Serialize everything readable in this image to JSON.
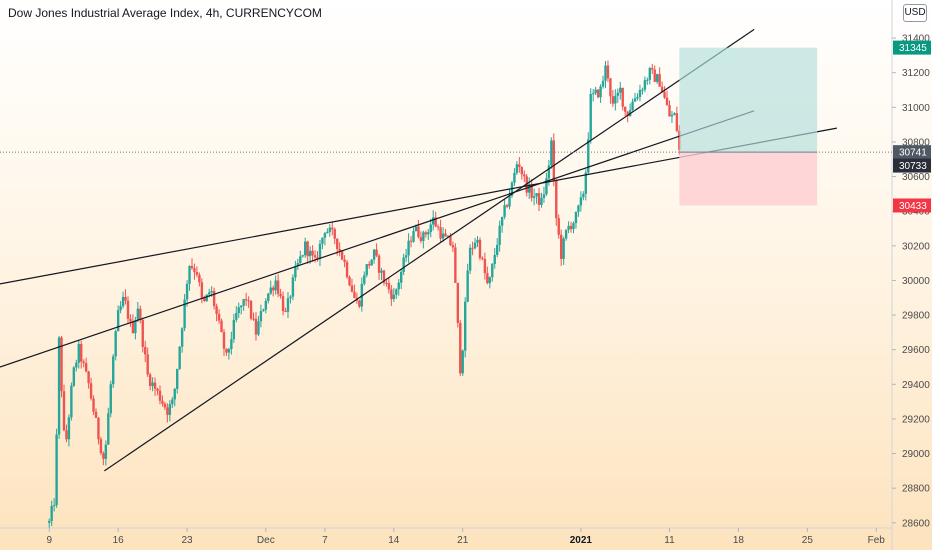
{
  "header": {
    "title": "Dow Jones Industrial Average Index, 4h, CURRENCYCOM",
    "currency": "USD"
  },
  "chart_data": {
    "type": "candlestick",
    "symbol": "Dow Jones Industrial Average Index",
    "interval": "4h",
    "exchange": "CURRENCYCOM",
    "y_ticks": [
      31400,
      31200,
      31000,
      30800,
      30600,
      30400,
      30200,
      30000,
      29800,
      29600,
      29400,
      29200,
      29000,
      28800,
      28600
    ],
    "ylim": [
      28570,
      31620
    ],
    "x_ticks": [
      {
        "label": "9",
        "bold": false
      },
      {
        "label": "16",
        "bold": false
      },
      {
        "label": "23",
        "bold": false
      },
      {
        "label": "Dec",
        "bold": false
      },
      {
        "label": "7",
        "bold": false
      },
      {
        "label": "14",
        "bold": false
      },
      {
        "label": "21",
        "bold": false
      },
      {
        "label": "2021",
        "bold": true
      },
      {
        "label": "11",
        "bold": false
      },
      {
        "label": "18",
        "bold": false
      },
      {
        "label": "25",
        "bold": false
      },
      {
        "label": "Feb",
        "bold": false
      }
    ],
    "x_tick_days": [
      0,
      7,
      14,
      22,
      28,
      35,
      42,
      54,
      63,
      70,
      77,
      84
    ],
    "xlim": [
      -5,
      85.6
    ],
    "path": [
      [
        0,
        28600
      ],
      [
        0.6,
        28750
      ],
      [
        1.0,
        29650
      ],
      [
        1.6,
        29000
      ],
      [
        2.4,
        29450
      ],
      [
        3.0,
        29600
      ],
      [
        4.0,
        29400
      ],
      [
        5.0,
        29100
      ],
      [
        5.6,
        28950
      ],
      [
        6.4,
        29500
      ],
      [
        7.0,
        29800
      ],
      [
        7.6,
        29900
      ],
      [
        8.4,
        29700
      ],
      [
        9.0,
        29850
      ],
      [
        10.0,
        29450
      ],
      [
        11.0,
        29350
      ],
      [
        12.0,
        29250
      ],
      [
        12.6,
        29300
      ],
      [
        13.4,
        29700
      ],
      [
        14.2,
        30100
      ],
      [
        15.0,
        30050
      ],
      [
        15.6,
        29850
      ],
      [
        16.4,
        29950
      ],
      [
        17.0,
        29800
      ],
      [
        18.0,
        29550
      ],
      [
        19.0,
        29800
      ],
      [
        20.0,
        29900
      ],
      [
        21.0,
        29700
      ],
      [
        22.0,
        29900
      ],
      [
        23.0,
        30000
      ],
      [
        24.0,
        29800
      ],
      [
        25.0,
        30050
      ],
      [
        26.0,
        30200
      ],
      [
        27.0,
        30100
      ],
      [
        28.0,
        30300
      ],
      [
        29.0,
        30250
      ],
      [
        30.0,
        30100
      ],
      [
        31.0,
        29900
      ],
      [
        31.4,
        29850
      ],
      [
        32.0,
        30050
      ],
      [
        33.0,
        30150
      ],
      [
        34.0,
        30000
      ],
      [
        35.0,
        29900
      ],
      [
        36.0,
        30100
      ],
      [
        37.0,
        30300
      ],
      [
        38.0,
        30250
      ],
      [
        39.0,
        30350
      ],
      [
        40.0,
        30250
      ],
      [
        41.0,
        30200
      ],
      [
        41.8,
        29450
      ],
      [
        42.6,
        30150
      ],
      [
        43.4,
        30250
      ],
      [
        44.0,
        30100
      ],
      [
        44.6,
        29950
      ],
      [
        45.4,
        30200
      ],
      [
        46.0,
        30350
      ],
      [
        47.0,
        30550
      ],
      [
        47.6,
        30700
      ],
      [
        48.4,
        30550
      ],
      [
        49.0,
        30500
      ],
      [
        50.0,
        30450
      ],
      [
        50.6,
        30600
      ],
      [
        51.0,
        30800
      ],
      [
        51.4,
        30400
      ],
      [
        52.0,
        30150
      ],
      [
        52.6,
        30300
      ],
      [
        53.4,
        30350
      ],
      [
        54.0,
        30450
      ],
      [
        54.4,
        30550
      ],
      [
        55.0,
        31050
      ],
      [
        56.0,
        31100
      ],
      [
        56.6,
        31250
      ],
      [
        57.2,
        31000
      ],
      [
        58.0,
        31100
      ],
      [
        58.6,
        30950
      ],
      [
        59.4,
        31050
      ],
      [
        60.0,
        31100
      ],
      [
        61.0,
        31200
      ],
      [
        62.0,
        31150
      ],
      [
        63.0,
        30950
      ],
      [
        63.6,
        30950
      ],
      [
        64.0,
        30750
      ]
    ],
    "lines": [
      {
        "name": "upper-channel",
        "points": [
          [
            5.6,
            28900
          ],
          [
            71.6,
            31450
          ]
        ]
      },
      {
        "name": "lower-channel",
        "points": [
          [
            -5,
            29500
          ],
          [
            71.6,
            30980
          ]
        ]
      },
      {
        "name": "wedge-line",
        "points": [
          [
            -5,
            29980
          ],
          [
            80,
            30880
          ]
        ]
      }
    ],
    "position": {
      "entry": 30741,
      "target": 31345,
      "stop": 30433,
      "x_from": 64.0,
      "x_to": 78.0
    },
    "price_labels": [
      {
        "value": 31345,
        "text": "31345",
        "color": "#089981"
      },
      {
        "value": 30741,
        "text": "30741",
        "color": "#4f5966"
      },
      {
        "value": 30733,
        "text": "30733",
        "color": "#2a2e39"
      },
      {
        "value": 30433,
        "text": "30433",
        "color": "#f23645"
      }
    ],
    "colors": {
      "up": "#26a69a",
      "down": "#ef5350",
      "target_zone": "#b2dfdb",
      "stop_zone": "#ffcdd2",
      "trendline": "#131722"
    }
  }
}
